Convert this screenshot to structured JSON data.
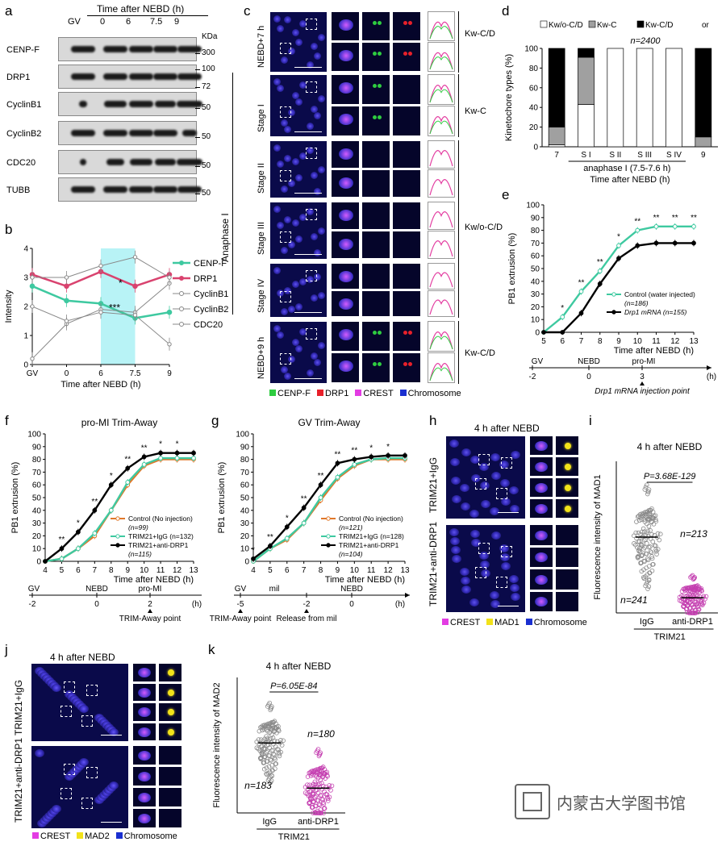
{
  "panels": {
    "a": {
      "label": "a",
      "time_header": "Time after NEBD (h)",
      "lanes": [
        "GV",
        "0",
        "6",
        "7.5",
        "9"
      ],
      "kda": "KDa",
      "rows": [
        {
          "name": "CENP-F",
          "markers": [
            "300"
          ]
        },
        {
          "name": "DRP1",
          "markers": [
            "100",
            "72"
          ]
        },
        {
          "name": "CyclinB1",
          "markers": [
            "50"
          ]
        },
        {
          "name": "CyclinB2",
          "markers": [
            "50"
          ]
        },
        {
          "name": "CDC20",
          "markers": [
            "50"
          ]
        },
        {
          "name": "TUBB",
          "markers": [
            "50"
          ]
        }
      ]
    },
    "b": {
      "label": "b",
      "ylabel": "Intensity",
      "xlabel": "Time after NEBD (h)",
      "legend": [
        "CENP-F",
        "DRP1",
        "CyclinB1",
        "CyclinB2",
        "CDC20"
      ],
      "star1": "*",
      "star2": "***"
    },
    "c": {
      "label": "c",
      "rows": [
        "NEBD+7 h",
        "Stage I",
        "Stage II",
        "Stage III",
        "Stage IV",
        "NEBD+9 h"
      ],
      "group_label": "Anaphase I",
      "kt_labels": [
        "Kw-C/D",
        "Kw-C",
        "Kw/o-C/D",
        "Kw-C/D"
      ],
      "legend": [
        "CENP-F",
        "DRP1",
        "CREST",
        "Chromosome"
      ]
    },
    "d": {
      "label": "d",
      "legend": [
        "Kw/o-C/D",
        "Kw-C",
        "Kw-C/D",
        "or"
      ],
      "n_label": "n=2400",
      "ylabel": "Kinetochore types (%)",
      "xlabel": "Time after NEBD (h)",
      "sub_xlabel": "anaphase I (7.5-7.6 h)"
    },
    "e": {
      "label": "e",
      "ylabel": "PB1 extrusion (%)",
      "xlabel": "Time after NEBD (h)",
      "legend": [
        "Control (water injected)",
        "(n=186)",
        "Drp1 mRNA (n=155)"
      ],
      "timeline": [
        "GV",
        "NEBD",
        "pro-MI",
        "-2",
        "0",
        "3",
        "(h)"
      ],
      "injection_label": "Drp1 mRNA injection point"
    },
    "f": {
      "label": "f",
      "title": "pro-MI Trim-Away",
      "ylabel": "PB1 extrusion (%)",
      "xlabel": "Time after NEBD (h)",
      "legend": [
        "Control (No injection)",
        "(n=99)",
        "TRIM21+IgG (n=132)",
        "TRIM21+anti-DRP1",
        "(n=115)"
      ],
      "timeline": [
        "GV",
        "NEBD",
        "pro-MI",
        "-2",
        "0",
        "2",
        "(h)"
      ],
      "point_label": "TRIM-Away point"
    },
    "g": {
      "label": "g",
      "title": "GV Trim-Away",
      "ylabel": "PB1 extrusion (%)",
      "xlabel": "Time after NEBD (h)",
      "legend": [
        "Control (No injection)",
        "(n=121)",
        "TRIM21+IgG (n=128)",
        "TRIM21+anti-DRP1",
        "(n=104)"
      ],
      "timeline": [
        "GV",
        "mil",
        "NEBD",
        "-5",
        "-2",
        "0",
        "(h)"
      ],
      "point_label": "TRIM-Away point",
      "release_label": "Release from mil"
    },
    "h": {
      "label": "h",
      "title": "4 h after NEBD",
      "rows": [
        "TRIM21+IgG",
        "TRIM21+anti-DRP1"
      ],
      "legend": [
        "CREST",
        "MAD1",
        "Chromosome"
      ]
    },
    "i": {
      "label": "i",
      "title": "4 h after NEBD",
      "ylabel": "Fluorescence intensity of MAD1",
      "pvalue": "P=3.68E-129",
      "groups": [
        "IgG",
        "anti-DRP1"
      ],
      "n": [
        "n=241",
        "n=213"
      ],
      "footer": "TRIM21"
    },
    "j": {
      "label": "j",
      "title": "4 h after NEBD",
      "rows": [
        "TRIM21+IgG",
        "TRIM21+anti-DRP1"
      ],
      "legend": [
        "CREST",
        "MAD2",
        "Chromosome"
      ]
    },
    "k": {
      "label": "k",
      "title": "4 h after NEBD",
      "ylabel": "Fluorescence intensity of MAD2",
      "pvalue": "P=6.05E-84",
      "groups": [
        "IgG",
        "anti-DRP1"
      ],
      "n": [
        "n=183",
        "n=180"
      ],
      "footer": "TRIM21"
    }
  },
  "watermark": "内蒙古大学图书馆",
  "chart_data": [
    {
      "panel": "b",
      "type": "line",
      "x": [
        "GV",
        "0",
        "6",
        "7.5",
        "9"
      ],
      "xlabel": "Time after NEBD (h)",
      "ylabel": "Intensity",
      "ylim": [
        0,
        4
      ],
      "series": [
        {
          "name": "CENP-F",
          "values": [
            2.7,
            2.2,
            2.1,
            1.6,
            1.8
          ],
          "color": "#3ec9a0"
        },
        {
          "name": "DRP1",
          "values": [
            3.1,
            2.7,
            3.2,
            2.7,
            3.1
          ],
          "color": "#d9436f"
        },
        {
          "name": "CyclinB1",
          "values": [
            0.2,
            1.4,
            1.9,
            1.8,
            2.8
          ],
          "color": "#888888"
        },
        {
          "name": "CyclinB2",
          "values": [
            3.0,
            3.0,
            3.4,
            3.7,
            3.0
          ],
          "color": "#888888"
        },
        {
          "name": "CDC20",
          "values": [
            2.0,
            1.5,
            1.8,
            1.7,
            0.7
          ],
          "color": "#888888"
        }
      ]
    },
    {
      "panel": "d",
      "type": "bar",
      "categories": [
        "7",
        "S I",
        "S II",
        "S III",
        "S IV",
        "9"
      ],
      "ylim": [
        0,
        100
      ],
      "series": [
        {
          "name": "Kw/o-C/D",
          "values": [
            2,
            43,
            100,
            100,
            100,
            0
          ],
          "color": "#ffffff"
        },
        {
          "name": "Kw-C",
          "values": [
            18,
            48,
            0,
            0,
            0,
            10
          ],
          "color": "#a0a0a0"
        },
        {
          "name": "Kw-C/D",
          "values": [
            80,
            9,
            0,
            0,
            0,
            90
          ],
          "color": "#000000"
        }
      ]
    },
    {
      "panel": "e",
      "type": "line",
      "x": [
        5,
        6,
        7,
        8,
        9,
        10,
        11,
        12,
        13
      ],
      "ylim": [
        0,
        100
      ],
      "series": [
        {
          "name": "Control (water injected)",
          "values": [
            0,
            12,
            32,
            48,
            68,
            80,
            83,
            83,
            83
          ],
          "color": "#3ec9a0"
        },
        {
          "name": "Drp1 mRNA",
          "values": [
            0,
            0,
            15,
            38,
            58,
            68,
            70,
            70,
            70
          ],
          "color": "#000000"
        }
      ],
      "stars": [
        "*",
        "**",
        "**",
        "*",
        "**",
        "**",
        "**",
        "**"
      ]
    },
    {
      "panel": "f",
      "type": "line",
      "x": [
        4,
        5,
        6,
        7,
        8,
        9,
        10,
        11,
        12,
        13
      ],
      "ylim": [
        0,
        100
      ],
      "series": [
        {
          "name": "Control (No injection)",
          "values": [
            0,
            2,
            10,
            20,
            40,
            60,
            75,
            80,
            80,
            80
          ],
          "color": "#e0782a"
        },
        {
          "name": "TRIM21+IgG",
          "values": [
            0,
            2,
            10,
            22,
            40,
            62,
            76,
            81,
            81,
            81
          ],
          "color": "#3ec9a0"
        },
        {
          "name": "TRIM21+anti-DRP1",
          "values": [
            0,
            10,
            23,
            40,
            60,
            73,
            82,
            85,
            85,
            85
          ],
          "color": "#000000"
        }
      ],
      "stars": [
        "**",
        "*",
        "**",
        "*",
        "**",
        "**",
        "*",
        "*"
      ]
    },
    {
      "panel": "g",
      "type": "line",
      "x": [
        4,
        5,
        6,
        7,
        8,
        9,
        10,
        11,
        12,
        13
      ],
      "ylim": [
        0,
        100
      ],
      "series": [
        {
          "name": "Control (No injection)",
          "values": [
            0,
            10,
            17,
            30,
            48,
            65,
            75,
            80,
            80,
            80
          ],
          "color": "#e0782a"
        },
        {
          "name": "TRIM21+IgG",
          "values": [
            0,
            10,
            18,
            30,
            50,
            66,
            76,
            80,
            81,
            81
          ],
          "color": "#3ec9a0"
        },
        {
          "name": "TRIM21+anti-DRP1",
          "values": [
            2,
            12,
            27,
            42,
            60,
            77,
            80,
            82,
            83,
            83
          ],
          "color": "#000000"
        }
      ],
      "stars": [
        "*",
        "**",
        "*",
        "**",
        "**",
        "**",
        "**",
        "*",
        "*"
      ]
    },
    {
      "panel": "i",
      "type": "scatter",
      "categories": [
        "IgG",
        "anti-DRP1"
      ],
      "ylim": [
        0,
        300
      ],
      "means": [
        150,
        30
      ],
      "ranges": [
        [
          40,
          250
        ],
        [
          0,
          90
        ]
      ],
      "counts": [
        241,
        213
      ],
      "colors": [
        "#888888",
        "#c43fb0"
      ]
    },
    {
      "panel": "k",
      "type": "scatter",
      "categories": [
        "IgG",
        "anti-DRP1"
      ],
      "ylim": [
        0,
        300
      ],
      "means": [
        155,
        55
      ],
      "ranges": [
        [
          70,
          250
        ],
        [
          0,
          175
        ]
      ],
      "counts": [
        183,
        180
      ],
      "colors": [
        "#888888",
        "#c43fb0"
      ]
    }
  ]
}
